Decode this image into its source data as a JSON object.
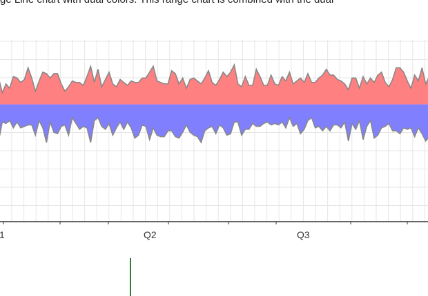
{
  "caption": "ge Line chart with dual colors. This range chart is combined with the dual",
  "colors": {
    "upper_fill": "#ff8080",
    "lower_fill": "#8080ff",
    "outline": "#888888",
    "grid": "#e6e6e6",
    "axis": "#333333",
    "marker": "#2e7d32"
  },
  "chart_data": {
    "type": "area",
    "xlabel": "",
    "ylabel": "",
    "baseline": 0,
    "ylim": [
      -8,
      4.4
    ],
    "grid": true,
    "x_tick_labels": [
      "1",
      "Q2",
      "Q3"
    ],
    "series": [
      {
        "values": [
          1.8,
          0.8,
          1.4,
          1.1,
          1.9,
          1.8,
          1.5,
          1.7,
          2.5,
          1.8,
          0.9,
          1.6,
          2.2,
          2.1,
          1.8,
          2.1,
          2.1,
          1.4,
          0.9,
          1.2,
          1.6,
          1.5,
          1.5,
          1.3,
          1.9,
          2.6,
          1.5,
          2.4,
          1.2,
          1.7,
          2.2,
          1.4,
          1.2,
          1.7,
          1.5,
          1.3,
          1.6,
          1.5,
          1.5,
          1.8,
          1.8,
          2.2,
          2.6,
          1.6,
          1.5,
          1.4,
          1.4,
          2.3,
          2.1,
          1.4,
          1.8,
          1.1,
          1.7,
          1.8,
          1.6,
          1.4,
          1.8,
          2.3,
          1.5,
          1.3,
          1.7,
          2.2,
          1.9,
          2.2,
          2.7,
          1.4,
          1.2,
          1.9,
          1.3,
          1.3,
          2.4,
          1.9,
          1.3,
          1.3,
          2.0,
          1.4,
          1.3,
          1.9,
          1.6,
          2.2,
          1.4,
          1.6,
          1.8,
          1.5,
          2.1,
          1.5,
          1.5,
          1.8,
          2.0,
          2.4,
          2.0,
          2.0,
          1.7,
          1.6,
          1.4,
          1.0,
          1.8,
          1.8,
          1.1,
          1.9,
          1.4,
          1.8,
          1.5,
          2.0,
          2.2,
          1.5,
          1.2,
          1.7,
          2.5,
          2.5,
          2.2,
          1.6,
          1.1,
          2.0,
          1.6,
          2.5,
          1.4,
          1.9
        ]
      },
      {
        "values": [
          -2.5,
          -1.2,
          -1.3,
          -1.1,
          -1.6,
          -1.2,
          -1.6,
          -1.5,
          -1.4,
          -1.4,
          -2.1,
          -1.1,
          -1.6,
          -2.6,
          -1.2,
          -1.9,
          -2.0,
          -1.5,
          -1.4,
          -2.1,
          -0.9,
          -1.3,
          -1.7,
          -1.5,
          -1.6,
          -2.6,
          -1.1,
          -0.9,
          -1.5,
          -1.7,
          -1.3,
          -2.1,
          -1.6,
          -1.2,
          -1.7,
          -1.2,
          -1.6,
          -2.3,
          -2.1,
          -1.4,
          -1.5,
          -2.4,
          -1.6,
          -2.1,
          -2.2,
          -2.2,
          -1.8,
          -1.8,
          -2.2,
          -2.3,
          -1.9,
          -1.4,
          -1.9,
          -2.1,
          -2.2,
          -2.6,
          -1.8,
          -1.6,
          -1.5,
          -2.0,
          -1.4,
          -1.6,
          -2.1,
          -2.0,
          -1.2,
          -1.2,
          -2.1,
          -1.7,
          -1.7,
          -1.3,
          -1.5,
          -1.5,
          -1.3,
          -1.2,
          -1.4,
          -1.3,
          -1.4,
          -1.2,
          -1.6,
          -0.9,
          -1.5,
          -1.3,
          -2.0,
          -1.7,
          -1.1,
          -0.9,
          -1.6,
          -1.5,
          -1.8,
          -1.5,
          -1.8,
          -1.4,
          -1.4,
          -1.6,
          -1.2,
          -2.5,
          -1.3,
          -1.7,
          -1.1,
          -2.4,
          -1.5,
          -1.1,
          -2.3,
          -2.1,
          -1.6,
          -1.5,
          -1.3,
          -1.8,
          -1.8,
          -2.0,
          -1.6,
          -1.7,
          -1.6,
          -2.2,
          -1.6,
          -2.0,
          -2.5,
          -2.2
        ]
      }
    ]
  }
}
